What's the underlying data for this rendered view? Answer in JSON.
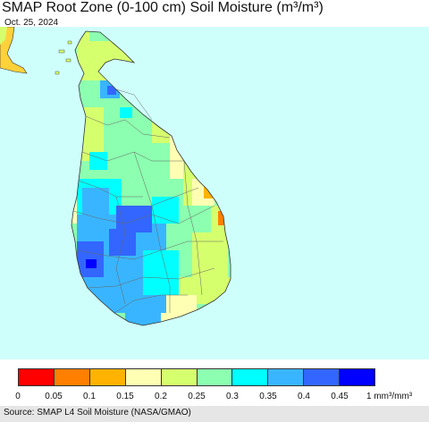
{
  "header": {
    "title": "SMAP Root Zone (0-100 cm) Soil Moisture (m³/m³)",
    "date": "Oct. 25, 2024"
  },
  "colors": {
    "ocean": "#cffffb",
    "scale": [
      "#ff0000",
      "#ff7f00",
      "#ffb300",
      "#ffffb3",
      "#d6ff6e",
      "#8cffb0",
      "#00ffff",
      "#39b5ff",
      "#3366ff",
      "#0000ff"
    ]
  },
  "legend": {
    "ticks": [
      "0",
      "0.05",
      "0.1",
      "0.15",
      "0.2",
      "0.25",
      "0.3",
      "0.35",
      "0.4",
      "0.45"
    ],
    "unit": "1 mm³/mm³"
  },
  "footer": {
    "source": "Source: SMAP L4 Soil Moisture (NASA/GMAO)"
  }
}
